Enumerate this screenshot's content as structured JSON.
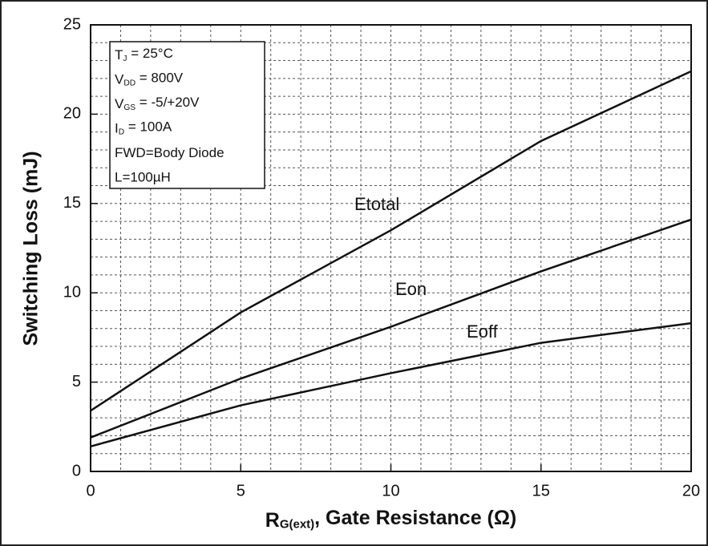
{
  "chart_data": {
    "type": "line",
    "x_label": [
      {
        "text": "R"
      },
      {
        "text": "G(ext)",
        "sub": true
      },
      {
        "text": ", Gate Resistance (Ω)"
      }
    ],
    "y_label": "Switching Loss (mJ)",
    "x": [
      0,
      5,
      10,
      15,
      20
    ],
    "series": [
      {
        "name": "Etotal",
        "color": "#111111",
        "values": [
          3.4,
          8.9,
          13.5,
          18.5,
          22.4
        ]
      },
      {
        "name": "Eon",
        "color": "#111111",
        "values": [
          1.9,
          5.2,
          8.1,
          11.2,
          14.1
        ]
      },
      {
        "name": "Eoff",
        "color": "#111111",
        "values": [
          1.4,
          3.7,
          5.5,
          7.2,
          8.3
        ]
      }
    ],
    "xlim": [
      0,
      20
    ],
    "ylim": [
      0,
      25
    ],
    "xticks": [
      0,
      5,
      10,
      15,
      20
    ],
    "yticks": [
      0,
      5,
      10,
      15,
      20,
      25
    ],
    "xminorticks": [
      1,
      2,
      3,
      4,
      6,
      7,
      8,
      9,
      11,
      12,
      13,
      14,
      16,
      17,
      18,
      19
    ],
    "yminorticks": [
      1,
      2,
      3,
      4,
      6,
      7,
      8,
      9,
      11,
      12,
      13,
      14,
      16,
      17,
      18,
      19,
      21,
      22,
      23,
      24
    ],
    "grid": true,
    "conditions": [
      [
        {
          "text": "T"
        },
        {
          "text": "J",
          "sub": true
        },
        {
          "text": " = 25°C"
        }
      ],
      [
        {
          "text": "V"
        },
        {
          "text": "DD",
          "sub": true
        },
        {
          "text": " = 800V"
        }
      ],
      [
        {
          "text": "V"
        },
        {
          "text": "GS",
          "sub": true
        },
        {
          "text": " = -5/+20V"
        }
      ],
      [
        {
          "text": "I"
        },
        {
          "text": "D",
          "sub": true
        },
        {
          "text": " = 100A"
        }
      ],
      [
        {
          "text": "FWD=Body Diode"
        }
      ],
      [
        {
          "text": "L=100µH"
        }
      ]
    ]
  }
}
